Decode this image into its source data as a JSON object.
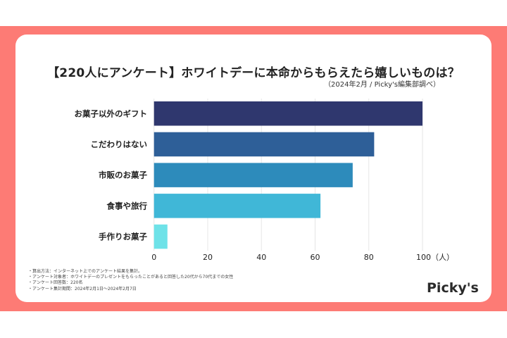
{
  "title": "【220人にアンケート】ホワイトデーに本命からもらえたら嬉しいものは？",
  "subtitle": "（2024年2月 / Picky's編集部調べ）",
  "chart_data": {
    "type": "bar",
    "orientation": "horizontal",
    "categories": [
      "お菓子以外のギフト",
      "こだわりはない",
      "市販のお菓子",
      "食事や旅行",
      "手作りお菓子"
    ],
    "values": [
      100,
      82,
      74,
      62,
      5
    ],
    "colors": [
      "#2f376e",
      "#2e5f98",
      "#2d8bbb",
      "#40b7d7",
      "#6ee2e8"
    ],
    "xlim": [
      0,
      100
    ],
    "xticks": [
      "0",
      "20",
      "40",
      "60",
      "80",
      "100（人）"
    ],
    "grid": true
  },
  "notes": [
    "・算出方法：インターネット上でのアンケート結果を集計。",
    "・アンケート対象者：ホワイトデーのプレゼントをもらったことがあると回答した20代から70代までの女性",
    "・アンケート回答数：220名",
    "・アンケート集計期間：2024年2月1日〜2024年2月7日"
  ],
  "logo": "Picky's",
  "colors": {
    "frame": "#fd7b75",
    "background": "#ffffff"
  }
}
